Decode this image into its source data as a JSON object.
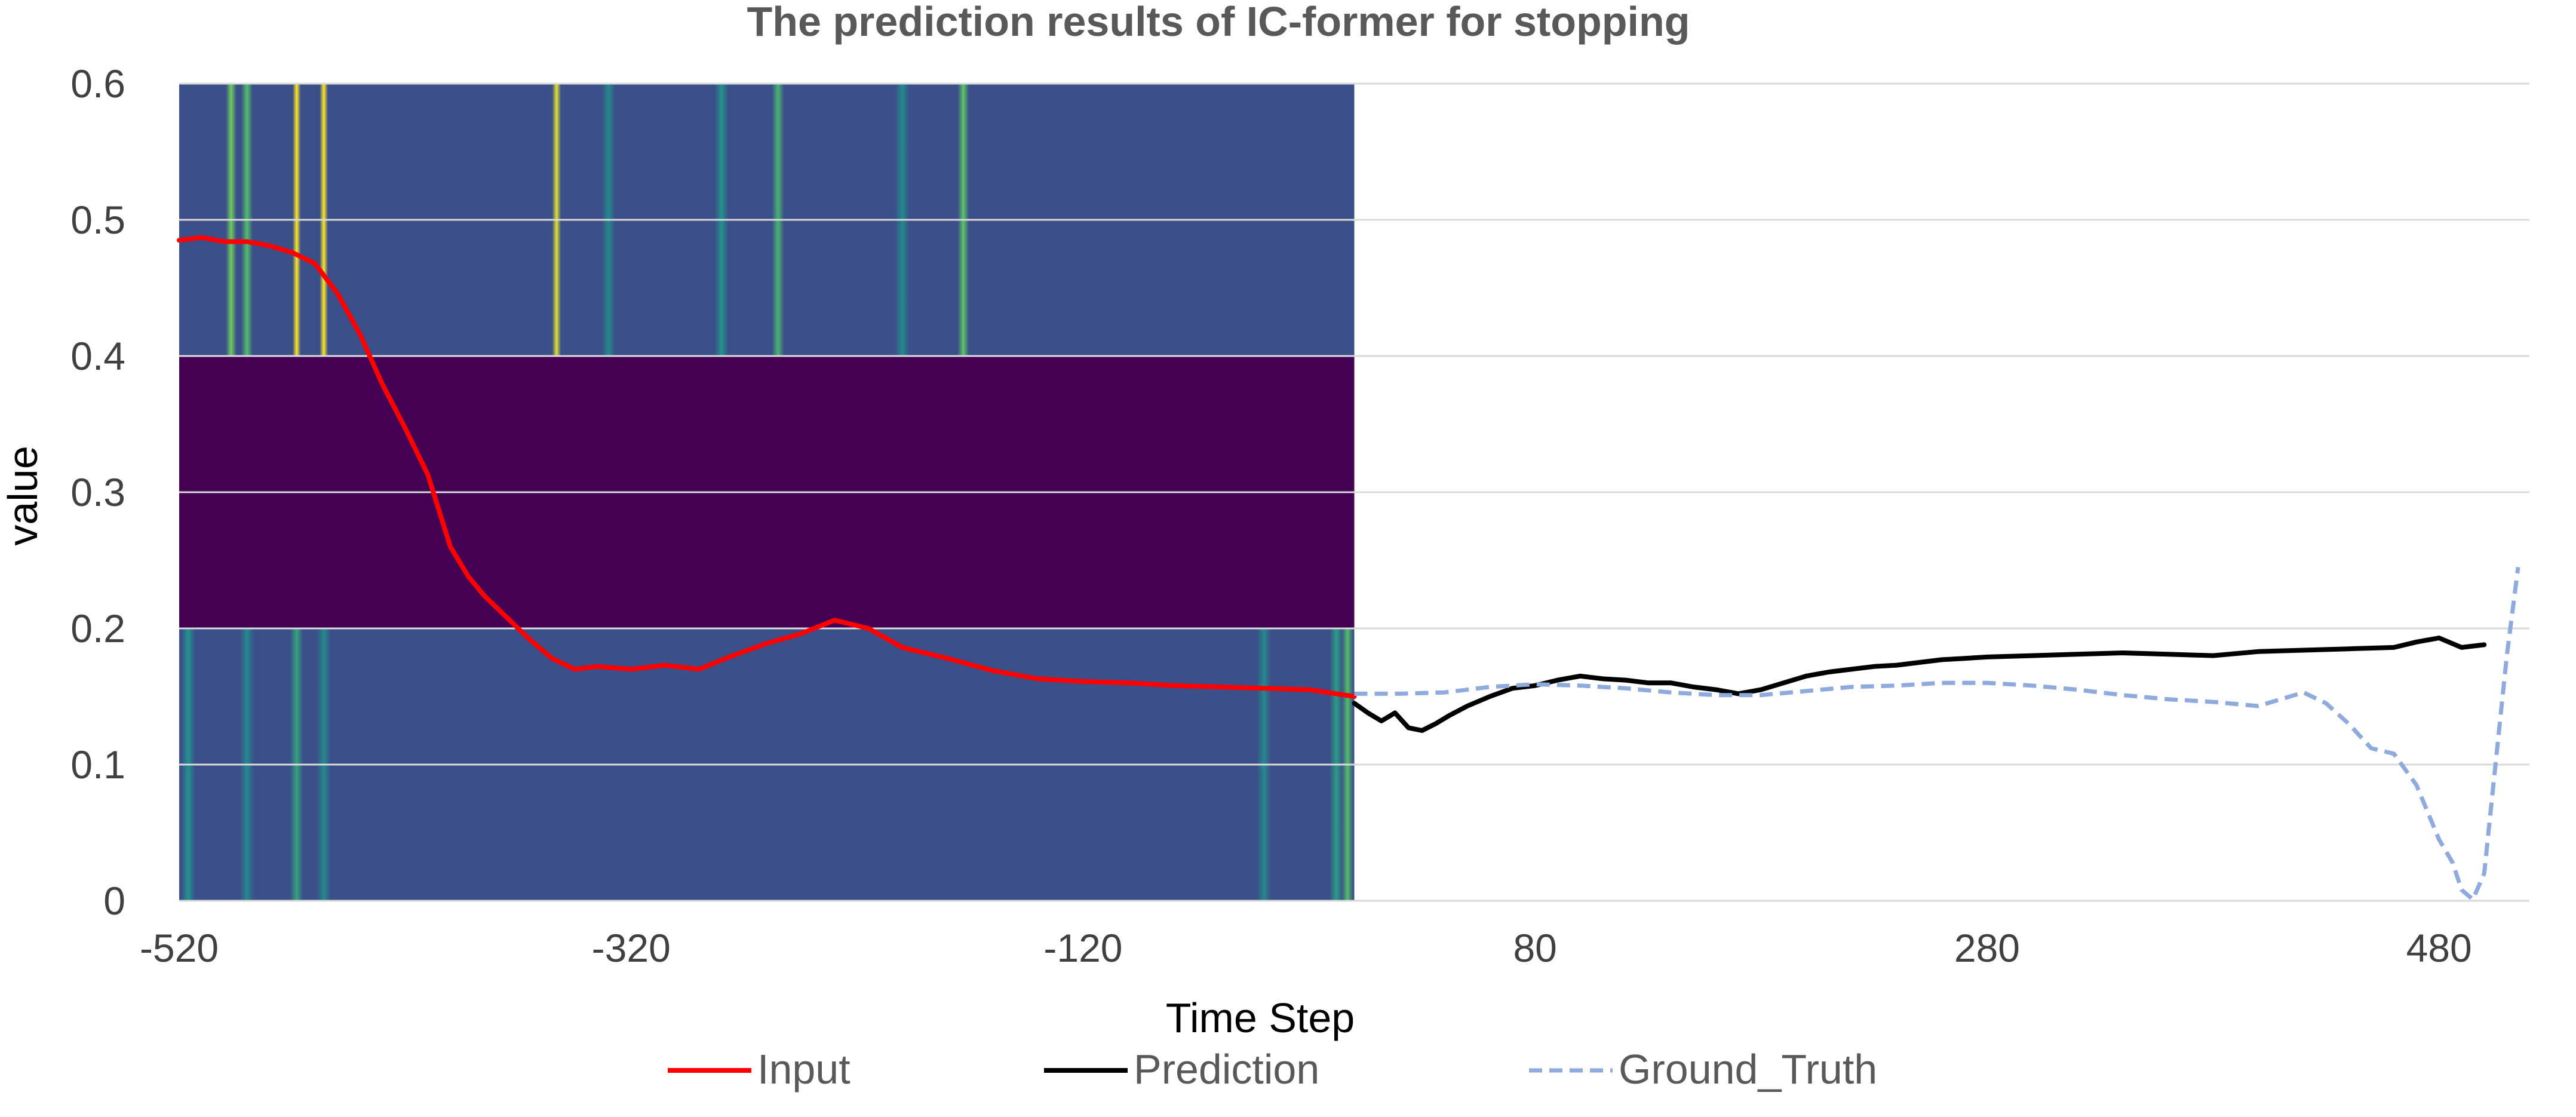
{
  "chart_data": {
    "type": "line",
    "title": "The prediction results of IC-former for stopping",
    "xlabel": "Time Step",
    "ylabel": "value",
    "xlim": [
      -520,
      520
    ],
    "ylim": [
      0,
      0.6
    ],
    "x_ticks": [
      -520,
      -320,
      -120,
      80,
      280,
      480
    ],
    "y_ticks": [
      0,
      0.1,
      0.2,
      0.3,
      0.4,
      0.5,
      0.6
    ],
    "x_tick_labels": [
      "-520",
      "-320",
      "-120",
      "80",
      "280",
      "480"
    ],
    "y_tick_labels": [
      "0",
      "0.1",
      "0.2",
      "0.3",
      "0.4",
      "0.5",
      "0.6"
    ],
    "grid": "horizontal",
    "legend_position": "bottom",
    "background_heatmap": {
      "x_range": [
        -520,
        0
      ],
      "colormap": "viridis",
      "bands": [
        {
          "y_range": [
            0.4,
            0.6
          ],
          "highlights": [
            {
              "x": -497,
              "intensity": 0.7
            },
            {
              "x": -490,
              "intensity": 0.6
            },
            {
              "x": -468,
              "intensity": 1.0
            },
            {
              "x": -456,
              "intensity": 1.0
            },
            {
              "x": -353,
              "intensity": 0.95
            },
            {
              "x": -330,
              "intensity": 0.3
            },
            {
              "x": -280,
              "intensity": 0.35
            },
            {
              "x": -255,
              "intensity": 0.55
            },
            {
              "x": -200,
              "intensity": 0.3
            },
            {
              "x": -173,
              "intensity": 0.65
            }
          ]
        },
        {
          "y_range": [
            0.2,
            0.4
          ],
          "highlights": []
        },
        {
          "y_range": [
            0,
            0.2
          ],
          "highlights": [
            {
              "x": -516,
              "intensity": 0.35
            },
            {
              "x": -490,
              "intensity": 0.3
            },
            {
              "x": -468,
              "intensity": 0.45
            },
            {
              "x": -456,
              "intensity": 0.3
            },
            {
              "x": -40,
              "intensity": 0.3
            },
            {
              "x": -8,
              "intensity": 0.4
            },
            {
              "x": -3,
              "intensity": 0.6
            }
          ]
        }
      ]
    },
    "series": [
      {
        "name": "Input",
        "color": "#ff0000",
        "dash": "solid",
        "x": [
          -520,
          -510,
          -500,
          -490,
          -480,
          -470,
          -460,
          -450,
          -440,
          -430,
          -420,
          -410,
          -400,
          -392,
          -385,
          -375,
          -365,
          -355,
          -345,
          -335,
          -320,
          -305,
          -290,
          -275,
          -260,
          -245,
          -230,
          -215,
          -200,
          -180,
          -160,
          -140,
          -120,
          -100,
          -80,
          -60,
          -40,
          -20,
          0
        ],
        "y": [
          0.485,
          0.487,
          0.484,
          0.484,
          0.481,
          0.476,
          0.468,
          0.446,
          0.416,
          0.379,
          0.347,
          0.313,
          0.26,
          0.238,
          0.224,
          0.208,
          0.192,
          0.178,
          0.17,
          0.172,
          0.17,
          0.173,
          0.17,
          0.18,
          0.189,
          0.196,
          0.206,
          0.2,
          0.186,
          0.178,
          0.169,
          0.163,
          0.161,
          0.16,
          0.158,
          0.157,
          0.156,
          0.155,
          0.15
        ]
      },
      {
        "name": "Prediction",
        "color": "#000000",
        "dash": "solid",
        "x": [
          0,
          6,
          12,
          18,
          24,
          30,
          36,
          42,
          50,
          60,
          70,
          80,
          90,
          100,
          110,
          120,
          130,
          140,
          150,
          160,
          170,
          180,
          190,
          200,
          210,
          220,
          230,
          240,
          250,
          260,
          270,
          280,
          300,
          320,
          340,
          360,
          380,
          400,
          420,
          440,
          460,
          470,
          480,
          490,
          500
        ],
        "y": [
          0.145,
          0.138,
          0.132,
          0.138,
          0.127,
          0.125,
          0.13,
          0.136,
          0.143,
          0.15,
          0.156,
          0.158,
          0.162,
          0.165,
          0.163,
          0.162,
          0.16,
          0.16,
          0.157,
          0.155,
          0.152,
          0.155,
          0.16,
          0.165,
          0.168,
          0.17,
          0.172,
          0.173,
          0.175,
          0.177,
          0.178,
          0.179,
          0.18,
          0.181,
          0.182,
          0.181,
          0.18,
          0.183,
          0.184,
          0.185,
          0.186,
          0.19,
          0.193,
          0.186,
          0.188
        ]
      },
      {
        "name": "Ground_Truth",
        "color": "#8faadc",
        "dash": "dashed",
        "x": [
          0,
          20,
          40,
          60,
          80,
          100,
          120,
          140,
          160,
          180,
          200,
          220,
          240,
          260,
          280,
          300,
          320,
          340,
          360,
          380,
          400,
          410,
          420,
          430,
          440,
          450,
          460,
          470,
          480,
          486,
          490,
          495,
          500,
          505,
          510,
          515
        ],
        "y": [
          0.152,
          0.152,
          0.153,
          0.157,
          0.159,
          0.158,
          0.156,
          0.153,
          0.151,
          0.151,
          0.154,
          0.157,
          0.158,
          0.16,
          0.16,
          0.158,
          0.155,
          0.151,
          0.148,
          0.146,
          0.143,
          0.148,
          0.153,
          0.145,
          0.13,
          0.112,
          0.108,
          0.085,
          0.045,
          0.028,
          0.008,
          0.001,
          0.02,
          0.1,
          0.18,
          0.245
        ]
      }
    ]
  }
}
